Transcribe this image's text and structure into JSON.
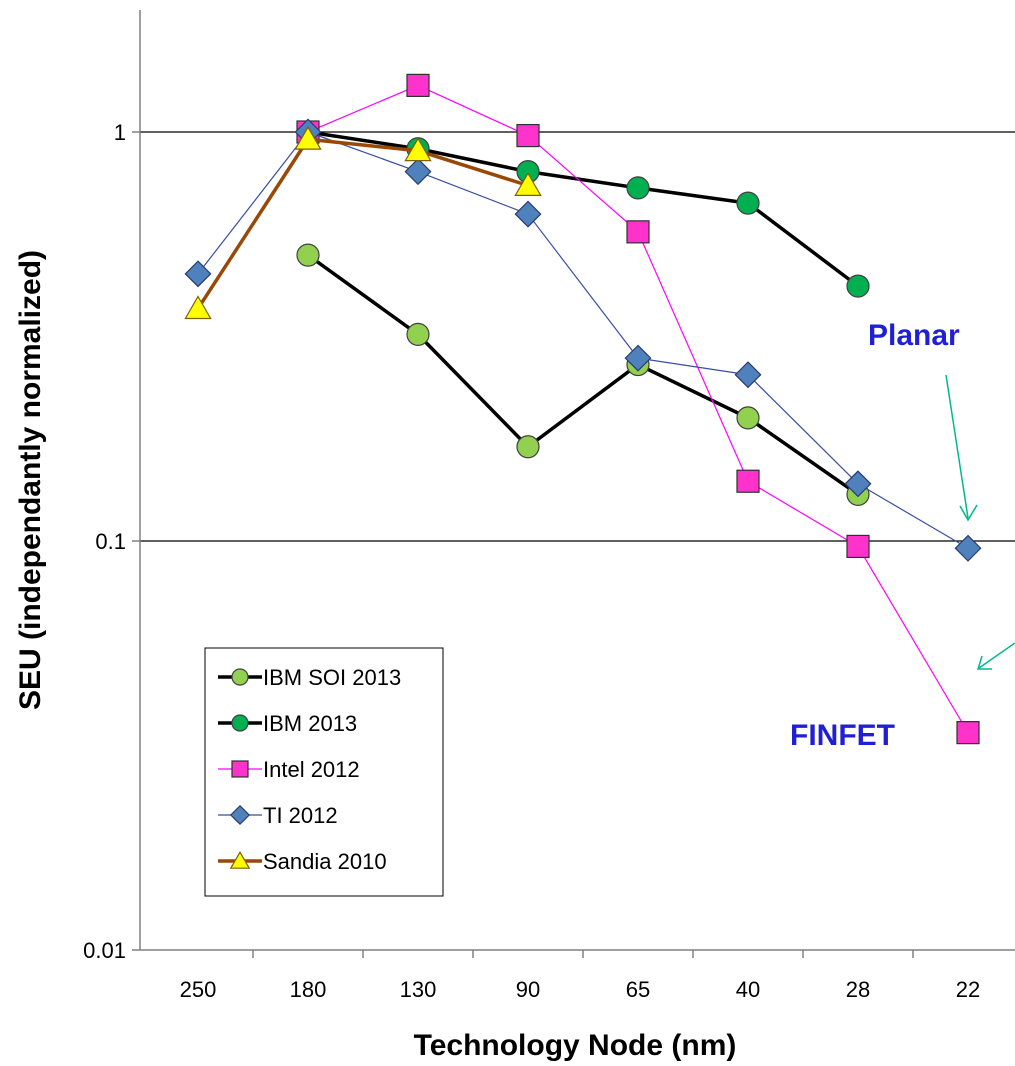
{
  "chart_data": {
    "type": "line",
    "title": "",
    "xlabel": "Technology Node (nm)",
    "ylabel": "SEU (independantly normalized)",
    "y_scale": "log",
    "ylim": [
      0.01,
      2
    ],
    "y_ticks": [
      "0.01",
      "0.1",
      "1"
    ],
    "y_tick_values": [
      0.01,
      0.1,
      1
    ],
    "categories": [
      "250",
      "180",
      "130",
      "90",
      "65",
      "40",
      "28",
      "22"
    ],
    "grid": "horizontal",
    "legend_position": "bottom-left",
    "series": [
      {
        "name": "IBM SOI 2013",
        "color": "#000000",
        "marker": "circle",
        "marker_fill": "#92d050",
        "values": [
          null,
          0.5,
          0.32,
          0.17,
          0.27,
          0.2,
          0.13,
          null
        ]
      },
      {
        "name": "IBM 2013",
        "color": "#000000",
        "marker": "circle",
        "marker_fill": "#00b050",
        "values": [
          null,
          1.0,
          0.91,
          0.8,
          0.73,
          0.67,
          0.42,
          null
        ]
      },
      {
        "name": "Intel 2012",
        "color": "#ff00ff",
        "marker": "square",
        "marker_fill": "#ff33cc",
        "values": [
          null,
          1.0,
          1.3,
          0.98,
          0.57,
          0.14,
          0.097,
          0.034
        ]
      },
      {
        "name": "TI 2012",
        "color": "#3a4ea0",
        "marker": "diamond",
        "marker_fill": "#4f81bd",
        "values": [
          0.45,
          1.0,
          0.8,
          0.63,
          0.28,
          0.255,
          0.138,
          0.096
        ]
      },
      {
        "name": "Sandia 2010",
        "color": "#984807",
        "marker": "triangle",
        "marker_fill": "#ffff00",
        "values": [
          0.37,
          0.96,
          0.9,
          0.74,
          null,
          null,
          null,
          null
        ]
      }
    ],
    "annotations": [
      {
        "text": "Planar",
        "color": "#1f1fd6"
      },
      {
        "text": "FINFET",
        "color": "#1f1fd6"
      }
    ]
  }
}
